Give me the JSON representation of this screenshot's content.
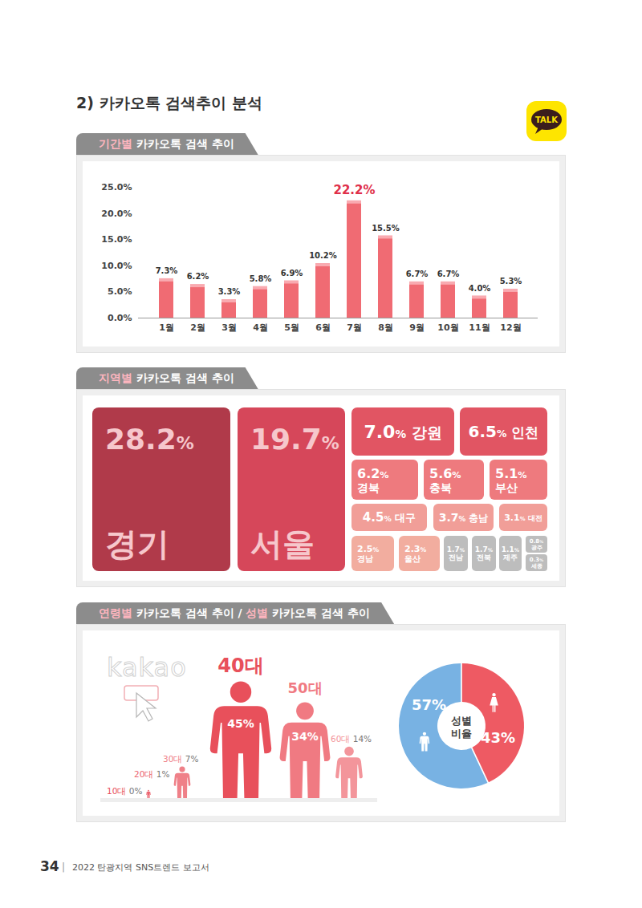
{
  "page": {
    "title": "2) 카카오톡 검색추이 분석",
    "logo": "TALK",
    "tabs": [
      [
        {
          "text": "기간별",
          "highlight": true
        },
        {
          "text": "카카오톡 검색 추이",
          "highlight": false
        }
      ],
      [
        {
          "text": "지역별",
          "highlight": true
        },
        {
          "text": "카카오톡 검색 추이",
          "highlight": false
        }
      ],
      [
        {
          "text": "연령별",
          "highlight": true
        },
        {
          "text": "카카오톡 검색 추이",
          "highlight": false
        },
        {
          "text": "/",
          "highlight": false
        },
        {
          "text": "성별",
          "highlight": true
        },
        {
          "text": "카카오톡 검색 추이",
          "highlight": false
        }
      ]
    ],
    "watermark": "kakao",
    "footer": {
      "page_number": "34",
      "separator": "|",
      "text": "2022 탄광지역 SNS트렌드 보고서"
    }
  },
  "chart_data": [
    {
      "type": "bar",
      "categories": [
        "1월",
        "2월",
        "3월",
        "4월",
        "5월",
        "6월",
        "7월",
        "8월",
        "9월",
        "10월",
        "11월",
        "12월"
      ],
      "values": [
        7.3,
        6.2,
        3.3,
        5.8,
        6.9,
        10.2,
        22.2,
        15.5,
        6.7,
        6.7,
        4.0,
        5.3
      ],
      "value_labels": [
        "7.3%",
        "6.2%",
        "3.3%",
        "5.8%",
        "6.9%",
        "10.2%",
        "22.2%",
        "15.5%",
        "6.7%",
        "6.7%",
        "4.0%",
        "5.3%"
      ],
      "color": "#f06b73",
      "ylim": [
        0,
        25
      ],
      "yticks": [
        {
          "value": 0,
          "label": "0.0%"
        },
        {
          "value": 5,
          "label": "5.0%"
        },
        {
          "value": 10,
          "label": "10.0%"
        },
        {
          "value": 15,
          "label": "15.0%"
        },
        {
          "value": 20,
          "label": "20.0%"
        },
        {
          "value": 25,
          "label": "25.0%"
        }
      ],
      "grid": false,
      "data_labels": true
    },
    {
      "type": "treemap",
      "categories": [
        "경기",
        "서울",
        "강원",
        "인천",
        "경북",
        "충북",
        "부산",
        "대구",
        "충남",
        "대전",
        "경남",
        "울산",
        "전남",
        "전북",
        "제주",
        "광주",
        "세종"
      ],
      "values": [
        28.2,
        19.7,
        7.0,
        6.5,
        6.2,
        5.6,
        5.1,
        4.5,
        3.7,
        3.1,
        2.5,
        2.3,
        1.7,
        1.7,
        1.1,
        0.8,
        0.3
      ],
      "value_labels": [
        "28.2%",
        "19.7%",
        "7.0%",
        "6.5%",
        "6.2%",
        "5.6%",
        "5.1%",
        "4.5%",
        "3.7%",
        "3.1%",
        "2.5%",
        "2.3%",
        "1.7%",
        "1.7%",
        "1.1%",
        "0.8%",
        "0.3%"
      ],
      "colors": [
        "#b03a4a",
        "#d6475a",
        "#e15563",
        "#e15563",
        "#ee7a7e",
        "#ee7a7e",
        "#ee7a7e",
        "#f19e98",
        "#f19e98",
        "#f19e98",
        "#f2ad9f",
        "#f2ad9f",
        "#bdbdbd",
        "#bdbdbd",
        "#bdbdbd",
        "#bdbdbd",
        "#bdbdbd"
      ],
      "data_labels": true
    },
    {
      "type": "pictograph",
      "categories": [
        "10대",
        "20대",
        "30대",
        "40대",
        "50대",
        "60대"
      ],
      "values": [
        0,
        1,
        7,
        45,
        34,
        14
      ],
      "value_labels": [
        "0%",
        "1%",
        "7%",
        "45%",
        "34%",
        "14%"
      ],
      "colors": [
        "#e8505b",
        "#ec6470",
        "#ef8088",
        "#e8505b",
        "#f07a82",
        "#f3959b"
      ],
      "data_labels": true
    },
    {
      "type": "donut",
      "title": "성별 비율",
      "categories": [
        null,
        null
      ],
      "values": [
        57,
        43
      ],
      "value_labels": [
        "57%",
        "43%"
      ],
      "colors": [
        "#78b2e3",
        "#ee5a63"
      ],
      "data_labels": true
    }
  ]
}
